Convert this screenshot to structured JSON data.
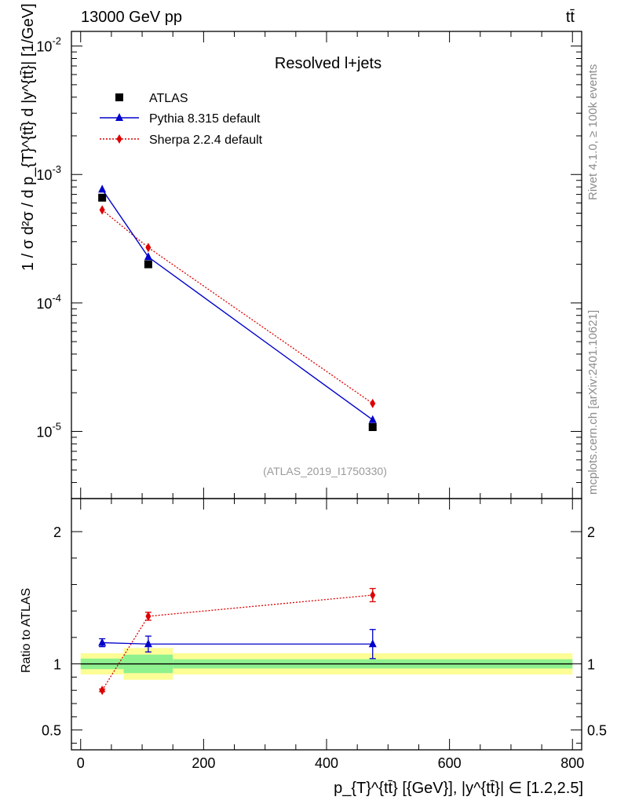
{
  "header": {
    "energy_label": "13000 GeV pp",
    "process_label": "tt̄"
  },
  "side_labels": {
    "rivet": "Rivet 4.1.0, ≥ 100k events",
    "mcplots": "mcplots.cern.ch [arXiv:2401.10621]"
  },
  "chart_data": [
    {
      "type": "scatter",
      "panel": "main",
      "title": "Resolved l+jets",
      "watermark": "(ATLAS_2019_I1750330)",
      "ylabel": "1 / σ d²σ / d p_{T}^{tt̄} d |y^{tt̄}| [1/GeV]",
      "yscale": "log",
      "ylim": [
        3e-06,
        0.013
      ],
      "xlim": [
        -15,
        815
      ],
      "ytick_labels": [
        "10^-5",
        "10^-4",
        "10^-3",
        "10^-2"
      ],
      "x": [
        35,
        110,
        475
      ],
      "series": [
        {
          "name": "ATLAS",
          "marker": "square",
          "color": "#000000",
          "values": [
            0.00066,
            0.0002,
            1.08e-05
          ]
        },
        {
          "name": "Pythia 8.315 default",
          "marker": "triangle",
          "color": "#0000cc",
          "line": "solid",
          "values": [
            0.000765,
            0.000228,
            1.23e-05
          ]
        },
        {
          "name": "Sherpa 2.2.4 default",
          "marker": "diamond",
          "color": "#dd0000",
          "line": "dotted",
          "values": [
            0.00053,
            0.00027,
            1.65e-05
          ]
        }
      ],
      "legend_position": "top-left"
    },
    {
      "type": "scatter",
      "panel": "ratio",
      "ylabel": "Ratio to ATLAS",
      "xlabel": "p_{T}^{tt̄} [{GeV}], |y^{tt̄}| ∈ [1.2,2.5]",
      "xlim": [
        -15,
        815
      ],
      "ylim": [
        0.35,
        2.25
      ],
      "ytick_labels": [
        "0.5",
        "1",
        "2"
      ],
      "xtick_labels": [
        "0",
        "200",
        "400",
        "600",
        "800"
      ],
      "xticks": [
        0,
        200,
        400,
        600,
        800
      ],
      "x": [
        35,
        110,
        475
      ],
      "reference_bins": [
        {
          "xmin": 0,
          "xmax": 70,
          "stat_err": 0.04,
          "total_err": 0.08
        },
        {
          "xmin": 70,
          "xmax": 150,
          "stat_err": 0.07,
          "total_err": 0.12
        },
        {
          "xmin": 150,
          "xmax": 800,
          "stat_err": 0.035,
          "total_err": 0.08
        }
      ],
      "series": [
        {
          "name": "Pythia 8.315 default",
          "color": "#0000cc",
          "values": [
            1.16,
            1.15,
            1.15
          ],
          "errors": [
            0.03,
            0.06,
            0.11
          ]
        },
        {
          "name": "Sherpa 2.2.4 default",
          "color": "#dd0000",
          "values": [
            0.8,
            1.36,
            1.52
          ],
          "errors": [
            0.01,
            0.03,
            0.05
          ]
        }
      ]
    }
  ]
}
